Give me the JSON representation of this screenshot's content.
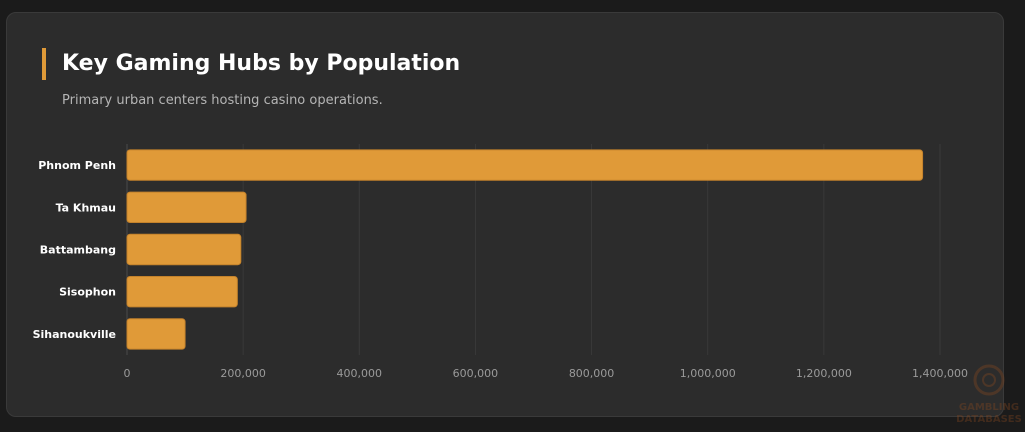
{
  "header": {
    "title": "Key Gaming Hubs by Population",
    "subtitle": "Primary urban centers hosting casino operations."
  },
  "colors": {
    "bar": "#e09a38",
    "bar_border": "#c4822b",
    "grid": "#3a3a3a",
    "tick_label": "#9a9a9a",
    "category_label": "#ffffff"
  },
  "chart_data": {
    "type": "bar",
    "orientation": "horizontal",
    "title": "Key Gaming Hubs by Population",
    "subtitle": "Primary urban centers hosting casino operations.",
    "categories": [
      "Phnom Penh",
      "Ta Khmau",
      "Battambang",
      "Sisophon",
      "Sihanoukville"
    ],
    "values": [
      1370000,
      205000,
      196000,
      190000,
      100000
    ],
    "xlim": [
      0,
      1400000
    ],
    "xticks": [
      0,
      200000,
      400000,
      600000,
      800000,
      1000000,
      1200000,
      1400000
    ],
    "xtick_labels": [
      "0",
      "200,000",
      "400,000",
      "600,000",
      "800,000",
      "1,000,000",
      "1,200,000",
      "1,400,000"
    ],
    "grid": true,
    "legend": "none"
  },
  "watermark": {
    "text_line1": "GAMBLING",
    "text_line2": "DATABASES",
    "icon": "poker-chip-icon"
  }
}
